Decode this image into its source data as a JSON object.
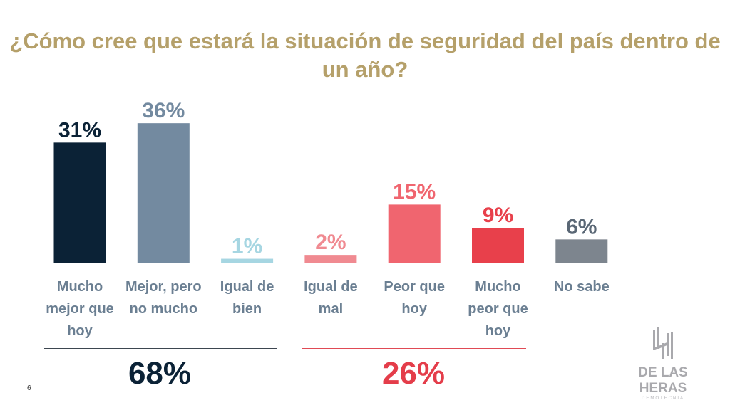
{
  "title": "¿Cómo cree que estará la situación de seguridad del país dentro de un año?",
  "page_number": "6",
  "logo": {
    "name": "DE LAS HERAS",
    "subtitle": "DEMOTECNIA"
  },
  "summary": {
    "positive": {
      "value": "68%",
      "color": "#0b2236"
    },
    "negative": {
      "value": "26%",
      "color": "#e43d4a"
    }
  },
  "chart_data": {
    "type": "bar",
    "title": "¿Cómo cree que estará la situación de seguridad del país dentro de un año?",
    "xlabel": "",
    "ylabel": "",
    "ylim": [
      0,
      40
    ],
    "grid": false,
    "categories": [
      "Mucho mejor que hoy",
      "Mejor, pero no mucho",
      "Igual de bien",
      "Igual de mal",
      "Peor que hoy",
      "Mucho peor que hoy",
      "No sabe"
    ],
    "values": [
      31,
      36,
      1,
      2,
      15,
      9,
      6
    ],
    "labels": [
      "31%",
      "36%",
      "1%",
      "2%",
      "15%",
      "9%",
      "6%"
    ],
    "colors": [
      "#0b2236",
      "#738aa0",
      "#a6d6e2",
      "#f08a91",
      "#f0656f",
      "#e8404b",
      "#7d858e"
    ],
    "label_colors": [
      "#0b2236",
      "#738aa0",
      "#a6d6e2",
      "#f08a91",
      "#f0656f",
      "#e8404b",
      "#5a6775"
    ]
  }
}
